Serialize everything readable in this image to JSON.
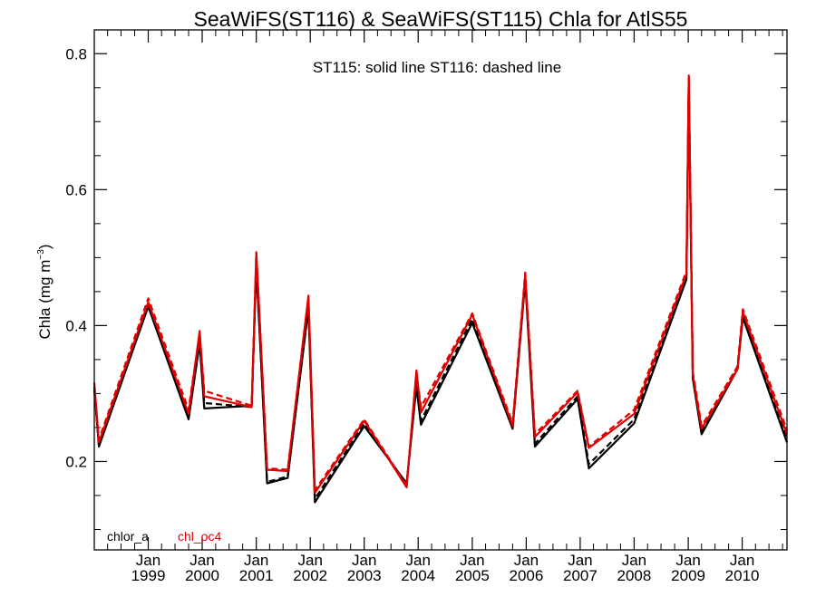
{
  "chart_data": {
    "type": "line",
    "title": "SeaWiFS(ST116) & SeaWiFS(ST115)  Chla for AtlS55",
    "ylabel_main": "Chla (mg m",
    "ylabel_sup": "−3",
    "ylabel_close": ")",
    "annotation": "ST115: solid line   ST116: dashed line",
    "xlim": [
      "1998-01-01",
      "2010-10-31"
    ],
    "ylim": [
      0.07,
      0.835
    ],
    "y_ticks": [
      0.2,
      0.4,
      0.6,
      0.8
    ],
    "y_tick_labels": [
      "0.2",
      "0.4",
      "0.6",
      "0.8"
    ],
    "y_minor_step": 0.05,
    "x_tick_dates": [
      "1999-01-01",
      "2000-01-01",
      "2001-01-01",
      "2002-01-01",
      "2003-01-01",
      "2004-01-01",
      "2005-01-01",
      "2006-01-01",
      "2007-01-01",
      "2008-01-01",
      "2009-01-01",
      "2010-01-01"
    ],
    "x_tick_month_label": "Jan",
    "x_tick_year_labels": [
      "1999",
      "2000",
      "2001",
      "2002",
      "2003",
      "2004",
      "2005",
      "2006",
      "2007",
      "2008",
      "2009",
      "2010"
    ],
    "legend_placement": "bottom-left",
    "series": [
      {
        "name": "chlor_a",
        "source": "ST115",
        "color": "#000000",
        "dash": false,
        "points": [
          [
            "1998-01-01",
            0.31
          ],
          [
            "1998-02-01",
            0.222
          ],
          [
            "1999-01-01",
            0.428
          ],
          [
            "1999-10-01",
            0.262
          ],
          [
            "1999-12-15",
            0.374
          ],
          [
            "2000-01-15",
            0.278
          ],
          [
            "2000-12-01",
            0.282
          ],
          [
            "2001-01-01",
            0.488
          ],
          [
            "2001-03-15",
            0.168
          ],
          [
            "2001-08-01",
            0.176
          ],
          [
            "2001-12-20",
            0.425
          ],
          [
            "2002-02-01",
            0.14
          ],
          [
            "2003-01-01",
            0.252
          ],
          [
            "2003-10-15",
            0.168
          ],
          [
            "2003-12-20",
            0.31
          ],
          [
            "2004-01-20",
            0.254
          ],
          [
            "2005-01-01",
            0.404
          ],
          [
            "2005-10-01",
            0.248
          ],
          [
            "2005-12-25",
            0.466
          ],
          [
            "2006-03-01",
            0.222
          ],
          [
            "2006-12-15",
            0.292
          ],
          [
            "2007-03-01",
            0.19
          ],
          [
            "2008-01-01",
            0.256
          ],
          [
            "2008-12-20",
            0.468
          ],
          [
            "2009-01-05",
            0.756
          ],
          [
            "2009-02-01",
            0.322
          ],
          [
            "2009-04-01",
            0.24
          ],
          [
            "2009-12-01",
            0.336
          ],
          [
            "2010-01-05",
            0.412
          ],
          [
            "2010-10-31",
            0.228
          ]
        ]
      },
      {
        "name": "chlor_a",
        "source": "ST116",
        "color": "#000000",
        "dash": true,
        "points": [
          [
            "1998-01-01",
            0.305
          ],
          [
            "1998-02-01",
            0.226
          ],
          [
            "1999-01-01",
            0.434
          ],
          [
            "1999-10-01",
            0.266
          ],
          [
            "1999-12-15",
            0.38
          ],
          [
            "2000-01-15",
            0.286
          ],
          [
            "2000-12-01",
            0.28
          ],
          [
            "2001-01-01",
            0.49
          ],
          [
            "2001-03-15",
            0.17
          ],
          [
            "2001-08-01",
            0.178
          ],
          [
            "2001-12-20",
            0.43
          ],
          [
            "2002-02-01",
            0.145
          ],
          [
            "2003-01-01",
            0.256
          ],
          [
            "2003-10-15",
            0.166
          ],
          [
            "2003-12-20",
            0.316
          ],
          [
            "2004-01-20",
            0.26
          ],
          [
            "2005-01-01",
            0.41
          ],
          [
            "2005-10-01",
            0.25
          ],
          [
            "2005-12-25",
            0.47
          ],
          [
            "2006-03-01",
            0.226
          ],
          [
            "2006-12-15",
            0.296
          ],
          [
            "2007-03-01",
            0.196
          ],
          [
            "2008-01-01",
            0.262
          ],
          [
            "2008-12-20",
            0.475
          ],
          [
            "2009-01-05",
            0.76
          ],
          [
            "2009-02-01",
            0.326
          ],
          [
            "2009-04-01",
            0.244
          ],
          [
            "2009-12-01",
            0.34
          ],
          [
            "2010-01-05",
            0.416
          ],
          [
            "2010-10-31",
            0.234
          ]
        ]
      },
      {
        "name": "chl_oc4",
        "source": "ST115",
        "color": "#e00000",
        "dash": false,
        "points": [
          [
            "1998-01-01",
            0.316
          ],
          [
            "1998-02-01",
            0.228
          ],
          [
            "1999-01-01",
            0.434
          ],
          [
            "1999-10-01",
            0.27
          ],
          [
            "1999-12-15",
            0.392
          ],
          [
            "2000-01-15",
            0.296
          ],
          [
            "2000-12-01",
            0.28
          ],
          [
            "2001-01-01",
            0.508
          ],
          [
            "2001-03-15",
            0.188
          ],
          [
            "2001-08-01",
            0.186
          ],
          [
            "2001-12-20",
            0.444
          ],
          [
            "2002-02-01",
            0.154
          ],
          [
            "2003-01-01",
            0.26
          ],
          [
            "2003-10-15",
            0.162
          ],
          [
            "2003-12-20",
            0.334
          ],
          [
            "2004-01-20",
            0.272
          ],
          [
            "2005-01-01",
            0.416
          ],
          [
            "2005-10-01",
            0.252
          ],
          [
            "2005-12-25",
            0.474
          ],
          [
            "2006-03-01",
            0.236
          ],
          [
            "2006-12-15",
            0.302
          ],
          [
            "2007-03-01",
            0.22
          ],
          [
            "2008-01-01",
            0.27
          ],
          [
            "2008-12-20",
            0.476
          ],
          [
            "2009-01-05",
            0.768
          ],
          [
            "2009-02-01",
            0.328
          ],
          [
            "2009-04-01",
            0.248
          ],
          [
            "2009-12-01",
            0.336
          ],
          [
            "2010-01-05",
            0.42
          ],
          [
            "2010-10-31",
            0.24
          ]
        ]
      },
      {
        "name": "chl_oc4",
        "source": "ST116",
        "color": "#e00000",
        "dash": true,
        "points": [
          [
            "1998-01-01",
            0.31
          ],
          [
            "1998-02-01",
            0.232
          ],
          [
            "1999-01-01",
            0.44
          ],
          [
            "1999-10-01",
            0.276
          ],
          [
            "1999-12-15",
            0.388
          ],
          [
            "2000-01-15",
            0.304
          ],
          [
            "2000-12-01",
            0.282
          ],
          [
            "2001-01-01",
            0.506
          ],
          [
            "2001-03-15",
            0.19
          ],
          [
            "2001-08-01",
            0.188
          ],
          [
            "2001-12-20",
            0.44
          ],
          [
            "2002-02-01",
            0.158
          ],
          [
            "2003-01-01",
            0.262
          ],
          [
            "2003-10-15",
            0.164
          ],
          [
            "2003-12-20",
            0.33
          ],
          [
            "2004-01-20",
            0.28
          ],
          [
            "2005-01-01",
            0.418
          ],
          [
            "2005-10-01",
            0.256
          ],
          [
            "2005-12-25",
            0.478
          ],
          [
            "2006-03-01",
            0.24
          ],
          [
            "2006-12-15",
            0.304
          ],
          [
            "2007-03-01",
            0.222
          ],
          [
            "2008-01-01",
            0.276
          ],
          [
            "2008-12-20",
            0.48
          ],
          [
            "2009-01-05",
            0.765
          ],
          [
            "2009-02-01",
            0.332
          ],
          [
            "2009-04-01",
            0.252
          ],
          [
            "2009-12-01",
            0.34
          ],
          [
            "2010-01-05",
            0.424
          ],
          [
            "2010-10-31",
            0.246
          ]
        ]
      }
    ],
    "legend": [
      {
        "label": "chlor_a",
        "color": "#000000"
      },
      {
        "label": "chl_oc4",
        "color": "#e00000"
      }
    ]
  }
}
